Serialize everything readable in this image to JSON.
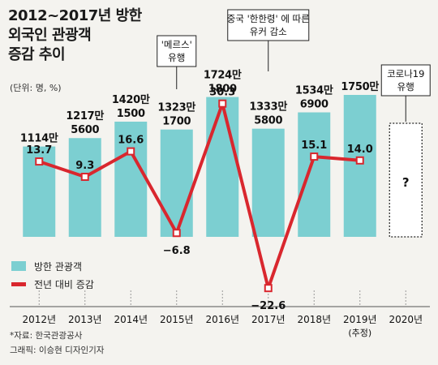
{
  "title_lines": [
    "2012~2017년 방한",
    "외국인 관광객",
    "증감 추이"
  ],
  "unit": "(단위: 명, %)",
  "source": "*자료: 한국관광공사",
  "credit": "그래픽: 이승현 디자인기자",
  "colors": {
    "bar": "#7ccfd1",
    "line": "#d9272e",
    "background": "#f4f3ef"
  },
  "chart_data": {
    "type": "bar",
    "categories": [
      "2012년",
      "2013년",
      "2014년",
      "2015년",
      "2016년",
      "2017년",
      "2018년",
      "2019년",
      "2020년"
    ],
    "category_sublabels": [
      "",
      "",
      "",
      "",
      "",
      "",
      "",
      "(추정)",
      ""
    ],
    "series": [
      {
        "name": "방한 관광객",
        "type": "bar",
        "values": [
          11140000,
          12175600,
          14201500,
          13231700,
          17241800,
          13335800,
          15346900,
          17500000,
          null
        ],
        "value_labels": [
          [
            "1114만"
          ],
          [
            "1217만",
            "5600"
          ],
          [
            "1420만",
            "1500"
          ],
          [
            "1323만",
            "1700"
          ],
          [
            "1724만",
            "1800"
          ],
          [
            "1333만",
            "5800"
          ],
          [
            "1534만",
            "6900"
          ],
          [
            "1750만"
          ],
          [
            "?"
          ]
        ]
      },
      {
        "name": "전년 대비 증감",
        "type": "line",
        "values": [
          13.7,
          9.3,
          16.6,
          -6.8,
          30.3,
          -22.6,
          15.1,
          14.0,
          null
        ],
        "value_labels": [
          "13.7",
          "9.3",
          "16.6",
          "−6.8",
          "30.3",
          "−22.6",
          "15.1",
          "14.0",
          ""
        ]
      }
    ],
    "annotations": [
      {
        "category": "2015년",
        "lines": [
          "'메르스'",
          "유행"
        ]
      },
      {
        "category": "2017년",
        "lines": [
          "중국 '한한령' 에 따른",
          "유커 감소"
        ]
      },
      {
        "category": "2020년",
        "lines": [
          "코로나19",
          "유행"
        ]
      }
    ],
    "legend": [
      "방한 관광객",
      "전년 대비 증감"
    ],
    "legend_position": "bottom-left"
  }
}
